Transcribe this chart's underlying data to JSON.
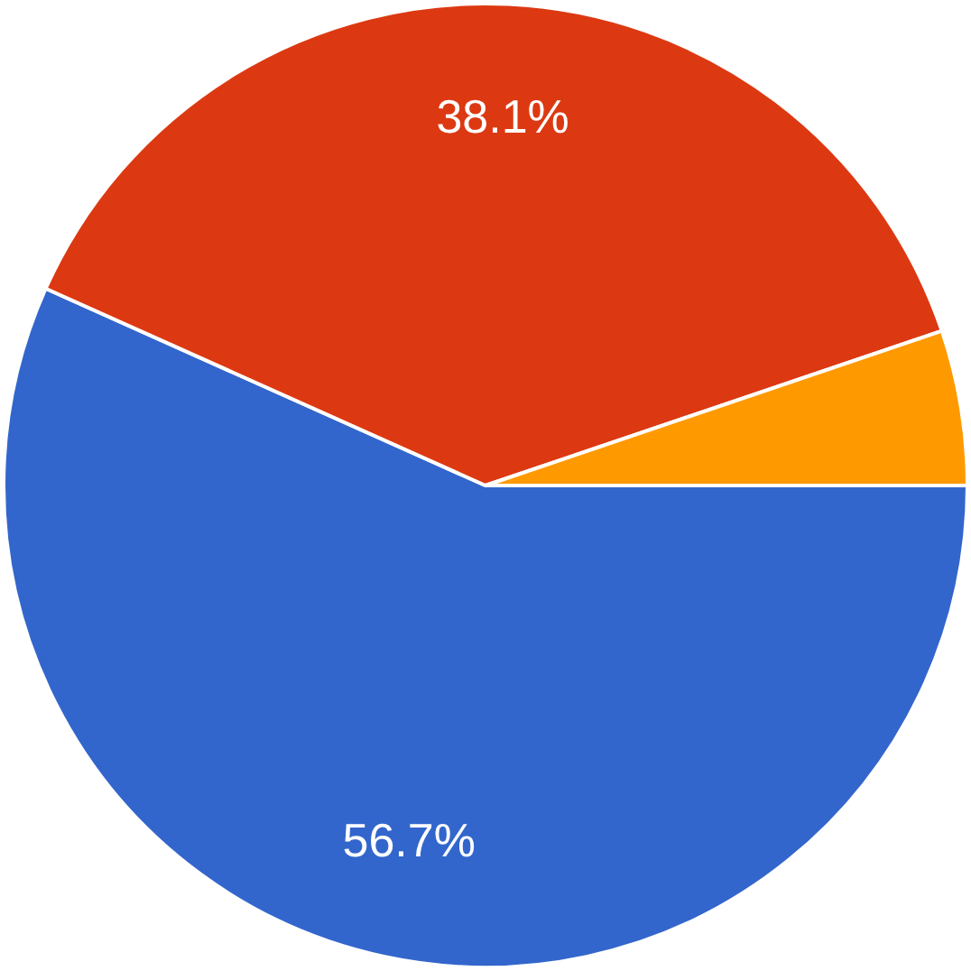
{
  "chart_data": {
    "type": "pie",
    "categories": [
      null,
      null,
      null
    ],
    "values": [
      56.7,
      38.1,
      5.2
    ],
    "colors": [
      "#3366cc",
      "#dc3912",
      "#ff9900"
    ],
    "value_labels": [
      "56.7%",
      "38.1%",
      null
    ],
    "legend": false
  }
}
